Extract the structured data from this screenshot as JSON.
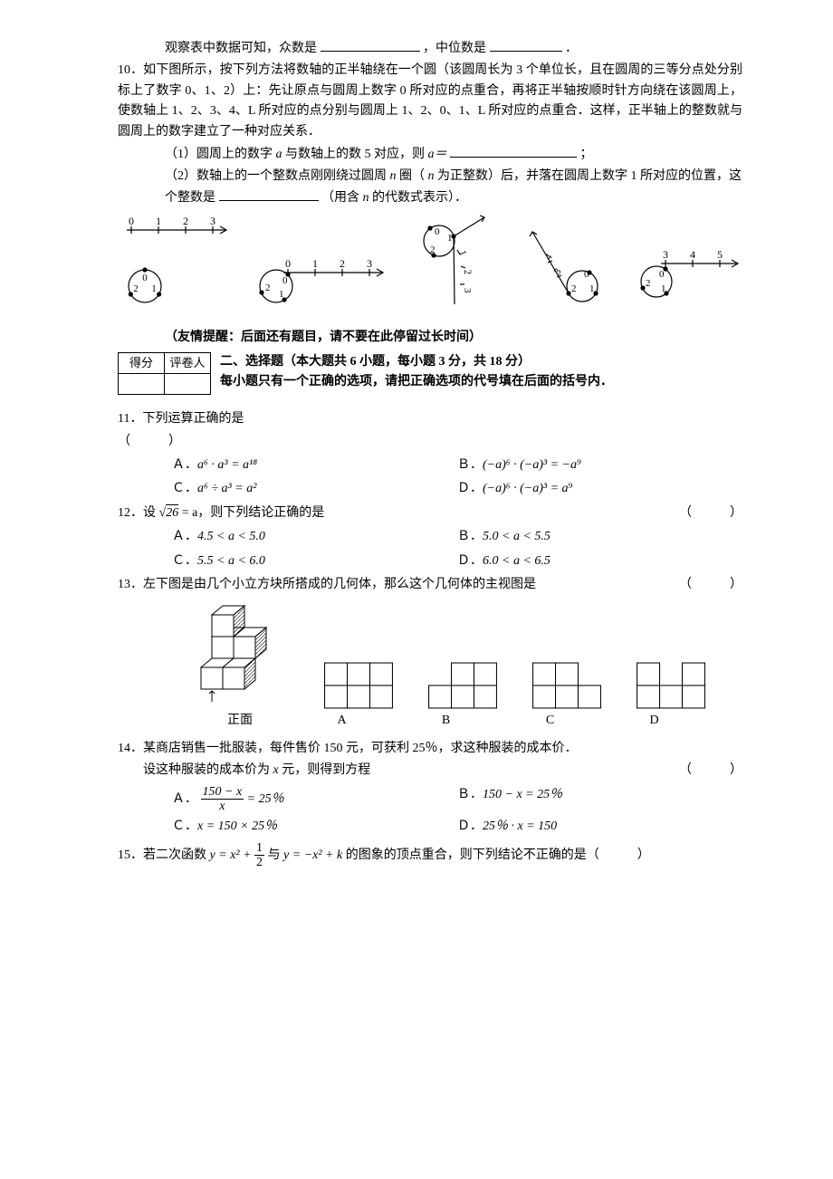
{
  "q9_tail": {
    "prefix": "观察表中数据可知，众数是",
    "mid": "，中位数是",
    "suffix": "．"
  },
  "q10": {
    "stem1": "10．如下图所示，按下列方法将数轴的正半轴绕在一个圆（该圆周长为 3 个单位长，且在圆周的三等分点处分别标上了数字 0、1、2）上：先让原点与圆周上数字 0 所对应的点重合，再将正半轴按顺时针方向绕在该圆周上，使数轴上 1、2、3、4、L 所对应的点分别与圆周上 1、2、0、1、L 所对应的点重合．这样，正半轴上的整数就与圆周上的数字建立了一种对应关系．",
    "sub1_pre": "（1）圆周上的数字",
    "sub1_a": "a",
    "sub1_mid": "与数轴上的数 5 对应，则",
    "sub1_eq": "a＝",
    "sub1_suffix": "；",
    "sub2_pre": "（2）数轴上的一个整数点刚刚绕过圆周",
    "sub2_n1": "n",
    "sub2_mid1": " 圈（",
    "sub2_n2": "n",
    "sub2_mid2": " 为正整数）后，并落在圆周上数字 1 所对应的位置，这个整数是",
    "sub2_suffix_pre": "（用含 ",
    "sub2_n3": "n",
    "sub2_suffix_post": " 的代数式表示）．"
  },
  "diagram": {
    "circle_labels": [
      "0",
      "1",
      "2"
    ],
    "axis1": [
      "0",
      "1",
      "2",
      "3"
    ],
    "axis2": [
      "0",
      "1",
      "2",
      "3"
    ],
    "axis3": [
      "3",
      "4",
      "5"
    ],
    "stroke": "#000000"
  },
  "friendly_reminder": "（友情提醒：后面还有题目，请不要在此停留过长时间）",
  "scorebox": {
    "c1": "得分",
    "c2": "评卷人"
  },
  "section2": {
    "title": "二、选择题（本大题共 6 小题，每小题 3 分，共 18 分）",
    "subtitle": "每小题只有一个正确的选项，请把正确选项的代号填在后面的括号内．"
  },
  "q11": {
    "stem": "11．下列运算正确的是",
    "paren": "（　　　）",
    "A_pre": "Ａ．",
    "A": "a⁶ · a³ = a¹⁸",
    "B_pre": "Ｂ．",
    "B": "(−a)⁶ · (−a)³ = −a⁹",
    "C_pre": "Ｃ．",
    "C": "a⁶ ÷ a³ = a²",
    "D_pre": "Ｄ．",
    "D": "(−a)⁶ · (−a)³ = a⁹"
  },
  "q12": {
    "stem_pre": "12．设",
    "sqrt_val": "26",
    "stem_mid": " = a，则下列结论正确的是",
    "paren": "（　　　）",
    "A_pre": "Ａ．",
    "A": "4.5 < a < 5.0",
    "B_pre": "Ｂ．",
    "B": "5.0 < a < 5.5",
    "C_pre": "Ｃ．",
    "C": "5.5 < a < 6.0",
    "D_pre": "Ｄ．",
    "D": "6.0 < a < 6.5"
  },
  "q13": {
    "stem": "13．左下图是由几个小立方块所搭成的几何体，那么这个几何体的主视图是",
    "paren": "（　　　）",
    "front_label": "正面",
    "labels": [
      "A",
      "B",
      "C",
      "D"
    ],
    "grid": {
      "A": [
        [
          1,
          1,
          1
        ],
        [
          1,
          1,
          1
        ]
      ],
      "B": [
        [
          0,
          1,
          1
        ],
        [
          1,
          1,
          1
        ]
      ],
      "C": [
        [
          1,
          1,
          0
        ],
        [
          1,
          1,
          1
        ]
      ],
      "D": [
        [
          1,
          0,
          1
        ],
        [
          1,
          1,
          1
        ]
      ]
    },
    "cell": 24
  },
  "q14": {
    "stem": "14．某商店销售一批服装，每件售价 150 元，可获利 25％，求这种服装的成本价．",
    "stem2_pre": "设这种服装的成本价为",
    "stem2_x": "x",
    "stem2_post": " 元，则得到方程",
    "paren": "（　　　）",
    "A_pre": "Ａ．",
    "A_num": "150 − x",
    "A_den": "x",
    "A_post": " = 25％",
    "B_pre": "Ｂ．",
    "B": "150 − x = 25％",
    "C_pre": "Ｃ．",
    "C": "x = 150 × 25％",
    "D_pre": "Ｄ．",
    "D": "25％ · x = 150"
  },
  "q15": {
    "stem_pre": "15．若二次函数 ",
    "y1_pre": "y = x² + ",
    "frac_n": "1",
    "frac_d": "2",
    "stem_mid": " 与 ",
    "y2": "y = −x² + k",
    "stem_post": " 的图象的顶点重合，则下列结论不正确的是（　　　）"
  },
  "colors": {
    "text": "#000000",
    "bg": "#ffffff",
    "hatch": "#000000"
  }
}
